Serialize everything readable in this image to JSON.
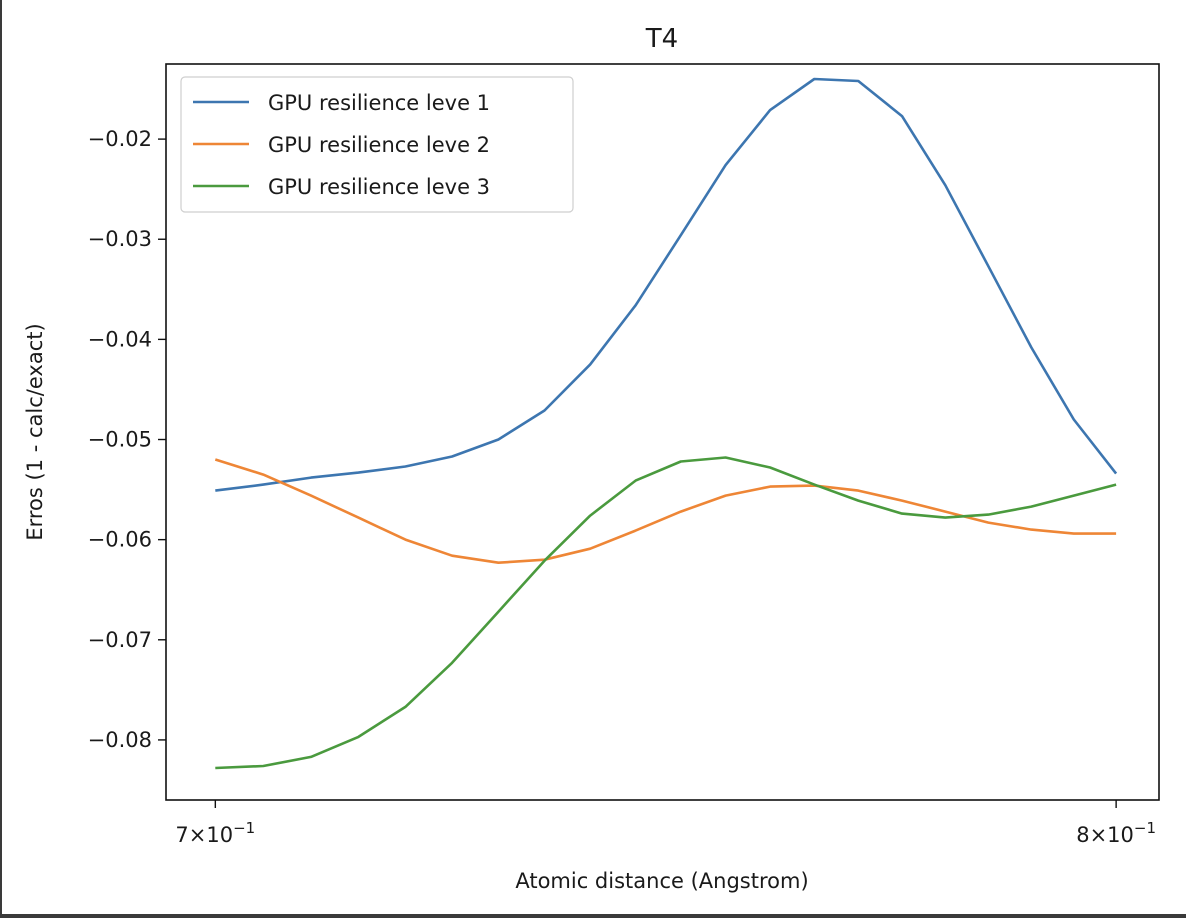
{
  "chart_data": {
    "type": "line",
    "title": "T4",
    "xlabel": "Atomic distance (Angstrom)",
    "ylabel": "Erros (1 - calc/exact)",
    "x_scale": "log",
    "xlim": [
      0.6949,
      0.8051
    ],
    "ylim": [
      -0.086,
      -0.0125
    ],
    "x_ticks": [
      {
        "value": 0.7,
        "mantissa": "7",
        "exponent": "−1"
      },
      {
        "value": 0.8,
        "mantissa": "8",
        "exponent": "−1"
      }
    ],
    "y_ticks": [
      {
        "value": -0.02,
        "label": "−0.02"
      },
      {
        "value": -0.03,
        "label": "−0.03"
      },
      {
        "value": -0.04,
        "label": "−0.04"
      },
      {
        "value": -0.05,
        "label": "−0.05"
      },
      {
        "value": -0.06,
        "label": "−0.06"
      },
      {
        "value": -0.07,
        "label": "−0.07"
      },
      {
        "value": -0.08,
        "label": "−0.08"
      }
    ],
    "x": [
      0.7,
      0.705,
      0.71,
      0.715,
      0.72,
      0.725,
      0.73,
      0.735,
      0.74,
      0.745,
      0.75,
      0.755,
      0.76,
      0.765,
      0.77,
      0.775,
      0.78,
      0.785,
      0.79,
      0.795,
      0.8
    ],
    "series": [
      {
        "name": "GPU resilience leve 1",
        "color": "#3d76b0",
        "values": [
          -0.0551,
          -0.0545,
          -0.0538,
          -0.0533,
          -0.0527,
          -0.0517,
          -0.05,
          -0.0471,
          -0.0425,
          -0.0366,
          -0.0296,
          -0.0226,
          -0.0171,
          -0.014,
          -0.0142,
          -0.0177,
          -0.0246,
          -0.0327,
          -0.0408,
          -0.048,
          -0.0534
        ]
      },
      {
        "name": "GPU resilience leve 2",
        "color": "#ee8636",
        "values": [
          -0.052,
          -0.0535,
          -0.0556,
          -0.0578,
          -0.06,
          -0.0616,
          -0.0623,
          -0.062,
          -0.0609,
          -0.0591,
          -0.0572,
          -0.0556,
          -0.0547,
          -0.0546,
          -0.0551,
          -0.0561,
          -0.0572,
          -0.0583,
          -0.059,
          -0.0594,
          -0.0594
        ]
      },
      {
        "name": "GPU resilience leve 3",
        "color": "#4a9a3e",
        "values": [
          -0.0828,
          -0.0826,
          -0.0817,
          -0.0797,
          -0.0767,
          -0.0723,
          -0.0672,
          -0.0621,
          -0.0576,
          -0.0541,
          -0.0522,
          -0.0518,
          -0.0528,
          -0.0545,
          -0.0561,
          -0.0574,
          -0.0578,
          -0.0575,
          -0.0567,
          -0.0556,
          -0.0545
        ]
      }
    ],
    "legend_position": "upper-left",
    "grid": false
  }
}
